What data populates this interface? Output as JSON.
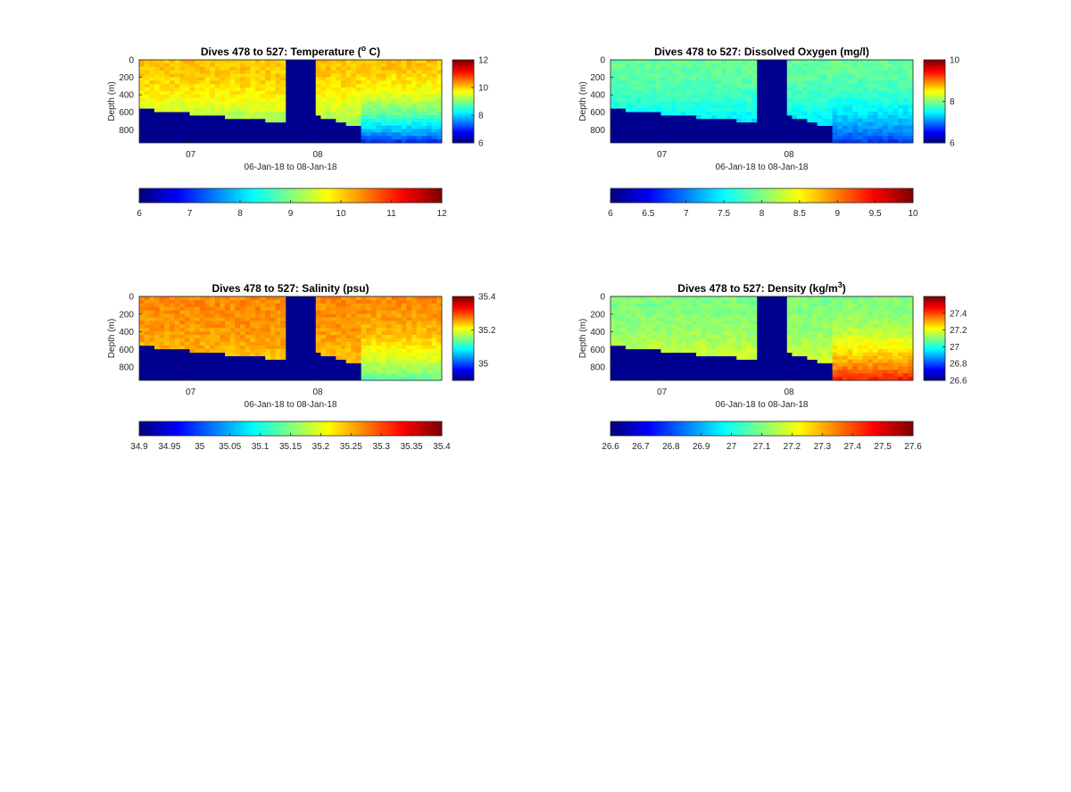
{
  "chart_data": [
    {
      "type": "heatmap",
      "title": "Dives 478 to 527: Temperature (",
      "title_sup": "o",
      "title_tail": " C)",
      "xlabel": "06-Jan-18 to 08-Jan-18",
      "ylabel": "Depth (m)",
      "x_ticks": [
        "07",
        "08"
      ],
      "y_ticks": [
        0,
        200,
        400,
        600,
        800
      ],
      "ylim": [
        0,
        950
      ],
      "clim": [
        6,
        12
      ],
      "side_colorbar_ticks": [
        "6",
        "8",
        "10",
        "12"
      ],
      "bottom_colorbar_ticks": [
        "6",
        "7",
        "8",
        "9",
        "10",
        "11",
        "12"
      ],
      "colormap": "jet",
      "no_data_color": "#00008f",
      "surface_value": 10.1,
      "deep_value": 8.4,
      "late_deep_value": 7.0
    },
    {
      "type": "heatmap",
      "title": "Dives 478 to 527: Dissolved Oxygen (mg/l)",
      "title_sup": "",
      "title_tail": "",
      "xlabel": "06-Jan-18 to 08-Jan-18",
      "ylabel": "Depth (m)",
      "x_ticks": [
        "07",
        "08"
      ],
      "y_ticks": [
        0,
        200,
        400,
        600,
        800
      ],
      "ylim": [
        0,
        950
      ],
      "clim": [
        6,
        10
      ],
      "side_colorbar_ticks": [
        "6",
        "8",
        "10"
      ],
      "bottom_colorbar_ticks": [
        "6",
        "6.5",
        "7",
        "7.5",
        "8",
        "8.5",
        "9",
        "9.5",
        "10"
      ],
      "colormap": "jet",
      "no_data_color": "#00008f",
      "surface_value": 7.9,
      "deep_value": 7.0,
      "late_deep_value": 6.7
    },
    {
      "type": "heatmap",
      "title": "Dives 478 to 527: Salinity (psu)",
      "title_sup": "",
      "title_tail": "",
      "xlabel": "06-Jan-18 to 08-Jan-18",
      "ylabel": "Depth (m)",
      "x_ticks": [
        "07",
        "08"
      ],
      "y_ticks": [
        0,
        200,
        400,
        600,
        800
      ],
      "ylim": [
        0,
        950
      ],
      "clim": [
        34.9,
        35.4
      ],
      "side_colorbar_ticks": [
        "35",
        "35.2",
        "35.4"
      ],
      "bottom_colorbar_ticks": [
        "34.9",
        "34.95",
        "35",
        "35.05",
        "35.1",
        "35.15",
        "35.2",
        "35.25",
        "35.3",
        "35.35",
        "35.4"
      ],
      "colormap": "jet",
      "no_data_color": "#00008f",
      "surface_value": 35.27,
      "deep_value": 35.22,
      "late_deep_value": 35.13
    },
    {
      "type": "heatmap",
      "title": "Dives 478 to 527: Density (kg/m",
      "title_sup": "3",
      "title_tail": ")",
      "xlabel": "06-Jan-18 to 08-Jan-18",
      "ylabel": "Depth (m)",
      "x_ticks": [
        "07",
        "08"
      ],
      "y_ticks": [
        0,
        200,
        400,
        600,
        800
      ],
      "ylim": [
        0,
        950
      ],
      "clim": [
        26.6,
        27.6
      ],
      "side_colorbar_ticks": [
        "26.6",
        "26.8",
        "27",
        "27.2",
        "27.4"
      ],
      "bottom_colorbar_ticks": [
        "26.6",
        "26.7",
        "26.8",
        "26.9",
        "27",
        "27.1",
        "27.2",
        "27.3",
        "27.4",
        "27.5",
        "27.6"
      ],
      "colormap": "jet",
      "no_data_color": "#00008f",
      "surface_value": 27.1,
      "deep_value": 27.25,
      "late_deep_value": 27.45
    }
  ]
}
